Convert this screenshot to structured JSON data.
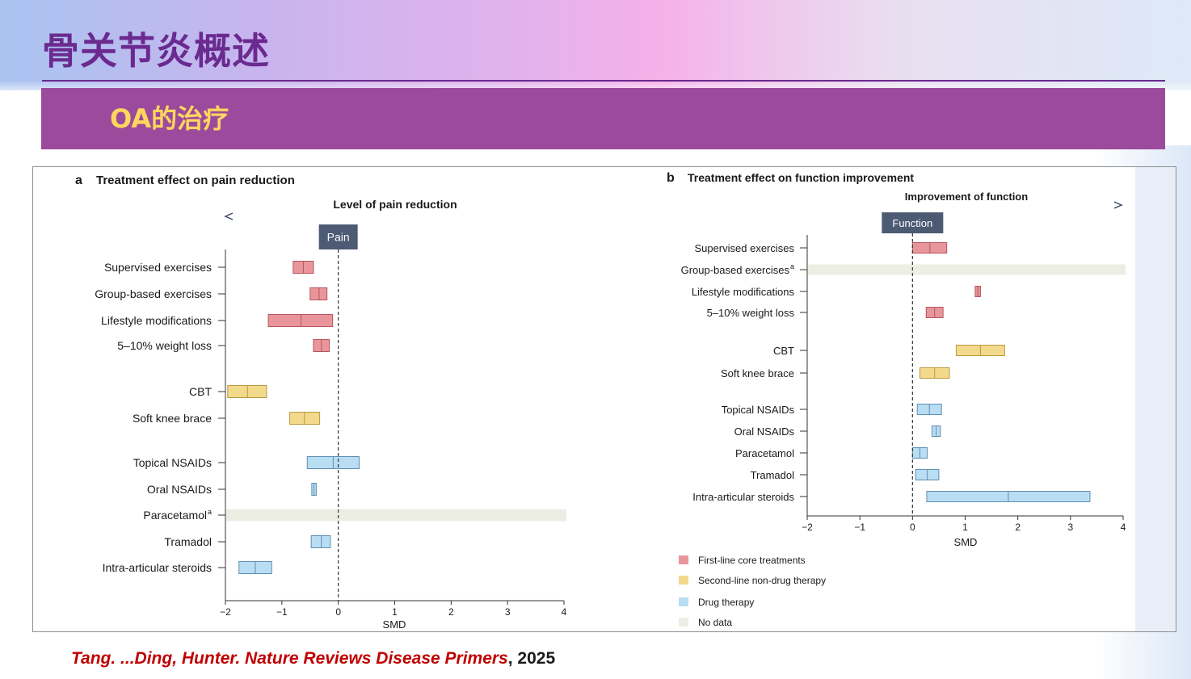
{
  "slide": {
    "title": "骨关节炎概述",
    "section": "OA的治疗"
  },
  "citation": {
    "text": "Tang. ...Ding, Hunter. Nature Reviews Disease Primers",
    "year": ", 2025"
  },
  "colors": {
    "first_line": "#e8969b",
    "second_line": "#f3d98b",
    "drug": "#b9ddf3",
    "no_data": "#eceee3",
    "arrow": "#3b4a6b",
    "tag_bg": "#4d5a74"
  },
  "chart_data": [
    {
      "type": "box",
      "panel": "a",
      "title": "Treatment effect on pain reduction",
      "direction_label": "Level of pain reduction",
      "direction": "left",
      "reference_label": "Pain",
      "xlabel": "SMD",
      "xlim": [
        -2,
        4
      ],
      "xticks": [
        -2,
        -1,
        0,
        1,
        2,
        3,
        4
      ],
      "xtick_labels": [
        "−2",
        "−1",
        "0",
        "1",
        "2",
        "3",
        "4"
      ],
      "grid": false,
      "rows": [
        {
          "label": "Supervised exercises",
          "group": "first_line",
          "low": -0.8,
          "mid": -0.62,
          "high": -0.44
        },
        {
          "label": "Group-based exercises",
          "group": "first_line",
          "low": -0.5,
          "mid": -0.34,
          "high": -0.2
        },
        {
          "label": "Lifestyle modifications",
          "group": "first_line",
          "low": -1.24,
          "mid": -0.66,
          "high": -0.1
        },
        {
          "label": "5–10% weight loss",
          "group": "first_line",
          "low": -0.44,
          "mid": -0.3,
          "high": -0.16
        },
        {
          "label": "CBT",
          "group": "second_line",
          "low": -1.96,
          "mid": -1.61,
          "high": -1.27
        },
        {
          "label": "Soft knee brace",
          "group": "second_line",
          "low": -0.86,
          "mid": -0.6,
          "high": -0.33
        },
        {
          "label": "Topical NSAIDs",
          "group": "drug",
          "low": -0.55,
          "mid": -0.09,
          "high": 0.37
        },
        {
          "label": "Oral NSAIDs",
          "group": "drug",
          "low": -0.47,
          "mid": -0.43,
          "high": -0.39
        },
        {
          "label": "Paracetamol",
          "label_sup": "a",
          "group": "no_data"
        },
        {
          "label": "Tramadol",
          "group": "drug",
          "low": -0.48,
          "mid": -0.3,
          "high": -0.14
        },
        {
          "label": "Intra-articular steroids",
          "group": "drug",
          "low": -1.76,
          "mid": -1.47,
          "high": -1.18
        }
      ]
    },
    {
      "type": "box",
      "panel": "b",
      "title": "Treatment effect on function improvement",
      "direction_label": "Improvement of function",
      "direction": "right",
      "reference_label": "Function",
      "xlabel": "SMD",
      "xlim": [
        -2,
        4
      ],
      "xticks": [
        -2,
        -1,
        0,
        1,
        2,
        3,
        4
      ],
      "xtick_labels": [
        "−2",
        "−1",
        "0",
        "1",
        "2",
        "3",
        "4"
      ],
      "grid": false,
      "rows": [
        {
          "label": "Supervised exercises",
          "group": "first_line",
          "low": 0.0,
          "mid": 0.33,
          "high": 0.65
        },
        {
          "label": "Group-based exercises",
          "label_sup": "a",
          "group": "no_data"
        },
        {
          "label": "Lifestyle modifications",
          "group": "first_line",
          "low": 1.19,
          "mid": 1.24,
          "high": 1.29
        },
        {
          "label": "5–10% weight loss",
          "group": "first_line",
          "low": 0.26,
          "mid": 0.42,
          "high": 0.58
        },
        {
          "label": "CBT",
          "group": "second_line",
          "low": 0.83,
          "mid": 1.29,
          "high": 1.75
        },
        {
          "label": "Soft knee brace",
          "group": "second_line",
          "low": 0.14,
          "mid": 0.42,
          "high": 0.7
        },
        {
          "label": "Topical NSAIDs",
          "group": "drug",
          "low": 0.09,
          "mid": 0.32,
          "high": 0.55
        },
        {
          "label": "Oral NSAIDs",
          "group": "drug",
          "low": 0.37,
          "mid": 0.45,
          "high": 0.53
        },
        {
          "label": "Paracetamol",
          "group": "drug",
          "low": 0.0,
          "mid": 0.14,
          "high": 0.28
        },
        {
          "label": "Tramadol",
          "group": "drug",
          "low": 0.06,
          "mid": 0.28,
          "high": 0.5
        },
        {
          "label": "Intra-articular steroids",
          "group": "drug",
          "low": 0.27,
          "mid": 1.82,
          "high": 3.37
        }
      ],
      "legend": {
        "position": "bottom-left",
        "items": [
          {
            "group": "first_line",
            "label": "First-line core treatments"
          },
          {
            "group": "second_line",
            "label": "Second-line non-drug therapy"
          },
          {
            "group": "drug",
            "label": "Drug therapy"
          },
          {
            "group": "no_data",
            "label": "No data"
          }
        ]
      }
    }
  ]
}
